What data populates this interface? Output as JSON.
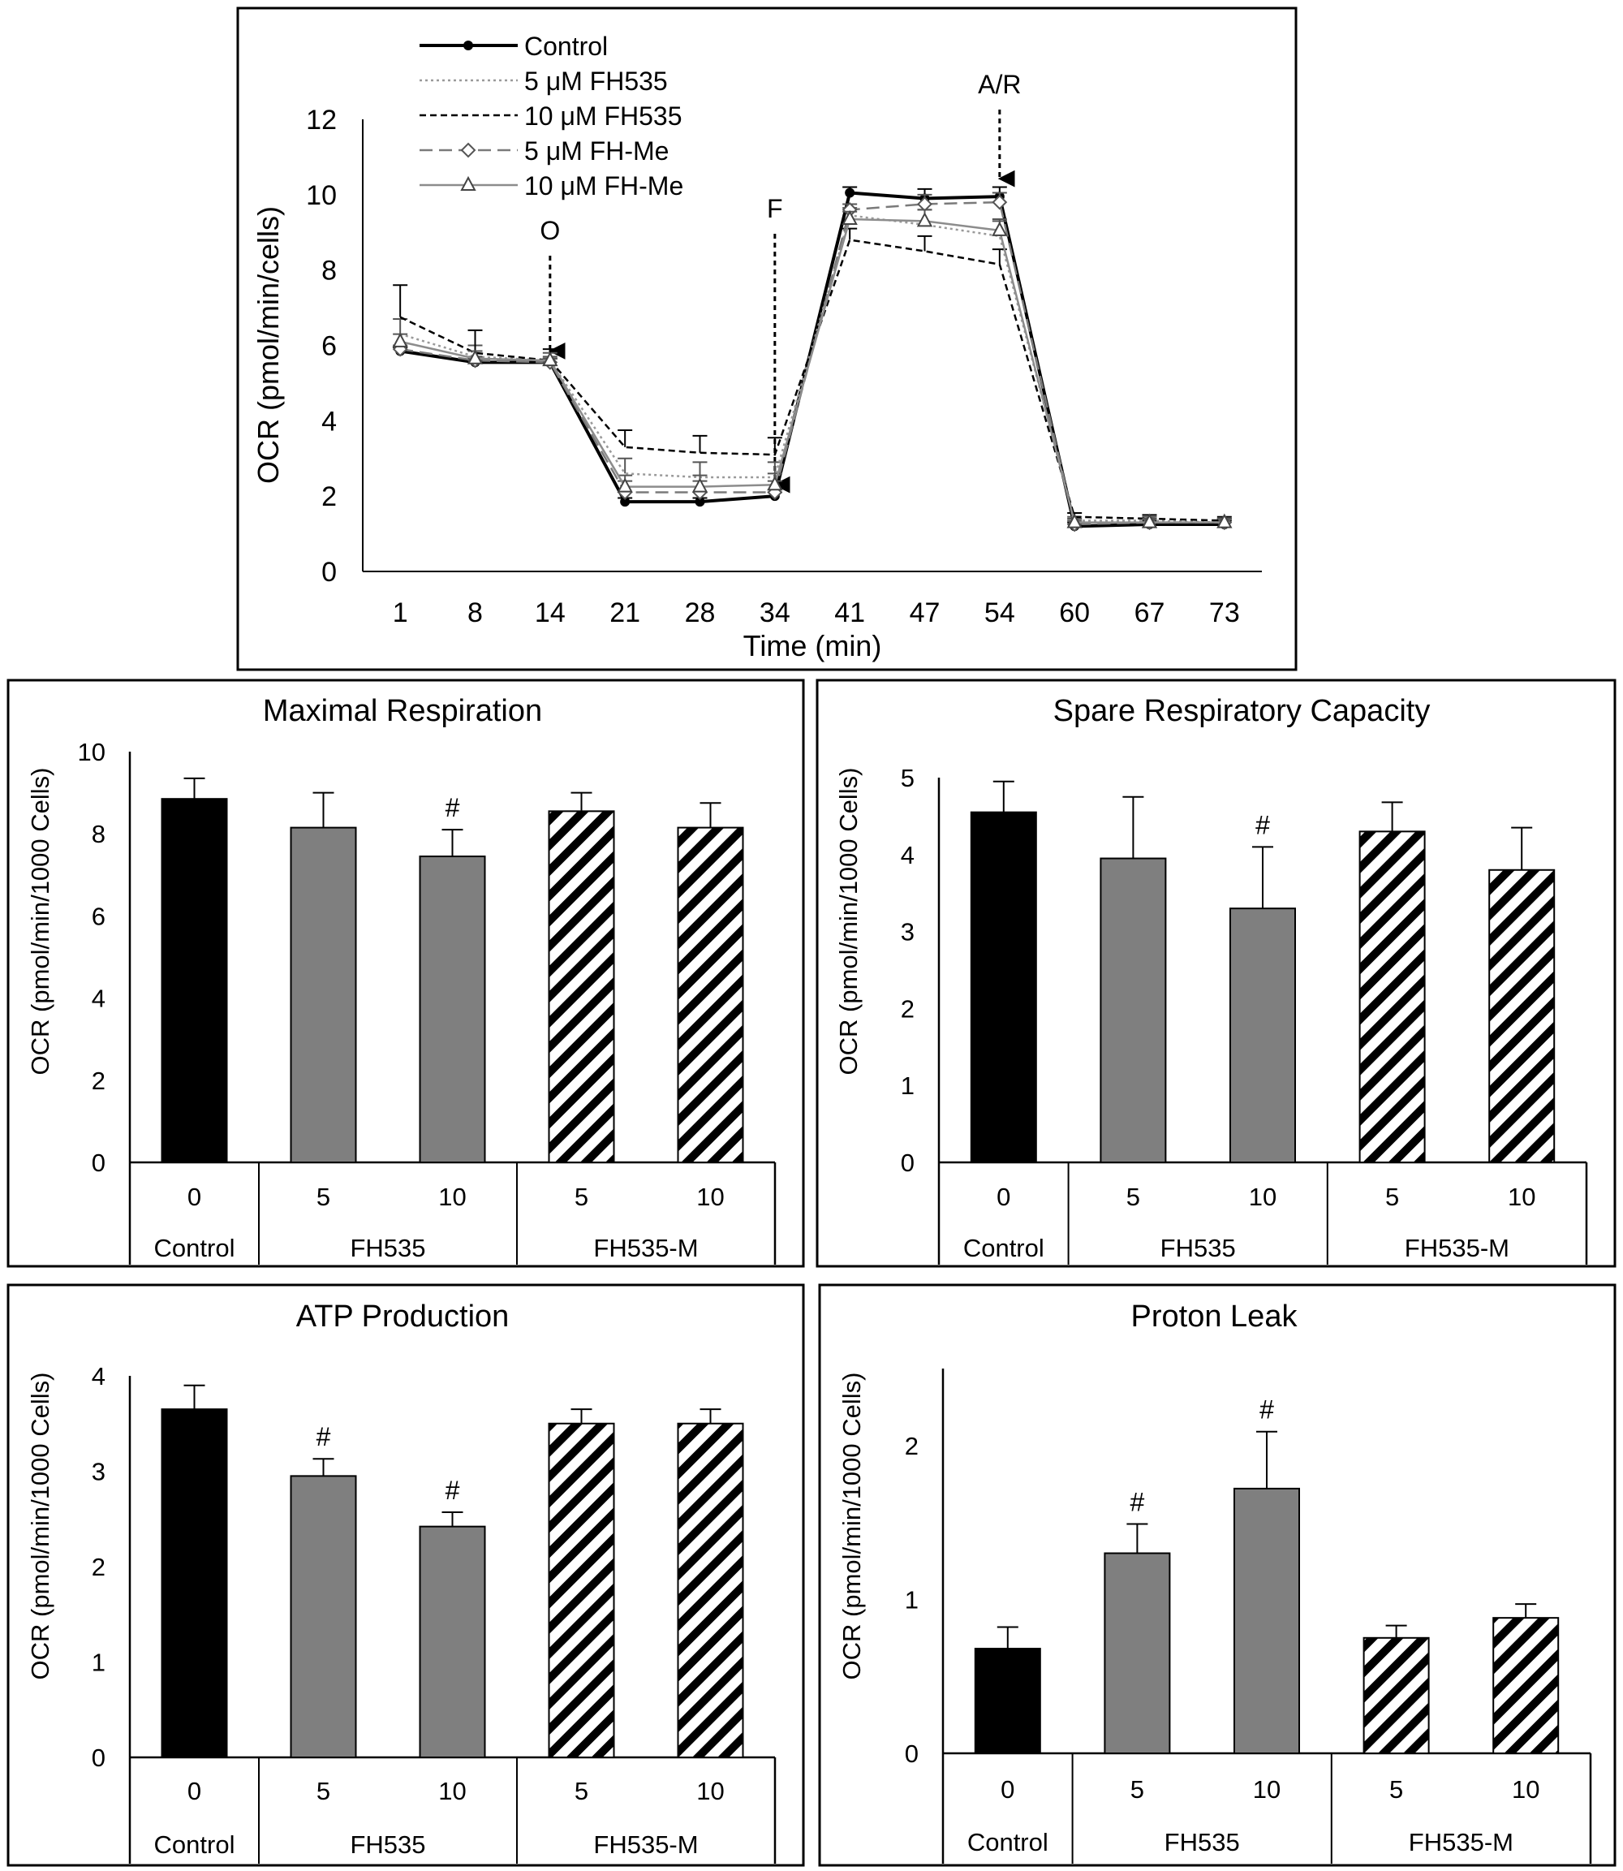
{
  "chart_data": [
    {
      "type": "line",
      "title": "",
      "xlabel": "Time (min)",
      "ylabel": "OCR (pmol/min/cells)",
      "x": [
        1,
        8,
        14,
        21,
        28,
        34,
        41,
        47,
        54,
        60,
        67,
        73
      ],
      "ylim": [
        0,
        12
      ],
      "yticks": [
        0,
        2,
        4,
        6,
        8,
        10,
        12
      ],
      "legend_position": "top-left",
      "series": [
        {
          "name": "Control",
          "values": [
            5.85,
            5.55,
            5.55,
            1.85,
            1.85,
            2.0,
            10.05,
            9.9,
            9.95,
            1.2,
            1.25,
            1.25
          ],
          "errors": [
            0.1,
            0.1,
            0.1,
            0.1,
            0.1,
            0.1,
            0.15,
            0.25,
            0.25,
            0.1,
            0.1,
            0.1
          ]
        },
        {
          "name": "5 μM FH535",
          "values": [
            6.3,
            5.7,
            5.6,
            2.6,
            2.5,
            2.5,
            9.45,
            9.2,
            8.9,
            1.35,
            1.35,
            1.3
          ],
          "errors": [
            0.4,
            0.3,
            0.2,
            0.4,
            0.4,
            0.4,
            0.2,
            0.4,
            0.4,
            0.1,
            0.1,
            0.1
          ]
        },
        {
          "name": "10 μM FH535",
          "values": [
            6.75,
            5.8,
            5.6,
            3.3,
            3.15,
            3.1,
            8.8,
            8.5,
            8.15,
            1.45,
            1.4,
            1.35
          ],
          "errors": [
            0.85,
            0.6,
            0.3,
            0.45,
            0.45,
            0.45,
            0.3,
            0.4,
            0.4,
            0.1,
            0.1,
            0.1
          ]
        },
        {
          "name": "5 μM FH-Me",
          "values": [
            5.9,
            5.6,
            5.55,
            2.1,
            2.1,
            2.1,
            9.6,
            9.75,
            9.8,
            1.25,
            1.3,
            1.3
          ],
          "errors": [
            0.1,
            0.1,
            0.1,
            0.3,
            0.3,
            0.3,
            0.15,
            0.25,
            0.25,
            0.1,
            0.1,
            0.1
          ]
        },
        {
          "name": "10 μM FH-Me",
          "values": [
            6.1,
            5.65,
            5.6,
            2.25,
            2.25,
            2.3,
            9.35,
            9.3,
            9.05,
            1.3,
            1.3,
            1.3
          ],
          "errors": [
            0.2,
            0.2,
            0.1,
            0.3,
            0.3,
            0.3,
            0.2,
            0.3,
            0.3,
            0.1,
            0.1,
            0.1
          ]
        }
      ],
      "annotations": [
        {
          "label": "O",
          "x": 14
        },
        {
          "label": "F",
          "x": 34
        },
        {
          "label": "A/R",
          "x": 54
        }
      ]
    },
    {
      "type": "bar",
      "title": "Maximal Respiration",
      "ylabel": "OCR (pmol/min/1000 Cells)",
      "ylim": [
        0,
        10
      ],
      "yticks": [
        0,
        2,
        4,
        6,
        8,
        10
      ],
      "categories": [
        "0",
        "5",
        "10",
        "5",
        "10"
      ],
      "groups": [
        {
          "label": "Control",
          "span": 1
        },
        {
          "label": "FH535",
          "span": 2
        },
        {
          "label": "FH535-M",
          "span": 2
        }
      ],
      "values": [
        8.85,
        8.15,
        7.45,
        8.55,
        8.15
      ],
      "errors": [
        0.5,
        0.85,
        0.65,
        0.45,
        0.6
      ],
      "markers": [
        "",
        "",
        "#",
        "",
        ""
      ],
      "fills": [
        "black",
        "gray",
        "gray",
        "hatch",
        "hatch"
      ]
    },
    {
      "type": "bar",
      "title": "Spare Respiratory Capacity",
      "ylabel": "OCR (pmol/min/1000 Cells)",
      "ylim": [
        0,
        5
      ],
      "yticks": [
        0,
        1,
        2,
        3,
        4,
        5
      ],
      "categories": [
        "0",
        "5",
        "10",
        "5",
        "10"
      ],
      "groups": [
        {
          "label": "Control",
          "span": 1
        },
        {
          "label": "FH535",
          "span": 2
        },
        {
          "label": "FH535-M",
          "span": 2
        }
      ],
      "values": [
        4.55,
        3.95,
        3.3,
        4.3,
        3.8
      ],
      "errors": [
        0.4,
        0.8,
        0.8,
        0.38,
        0.55
      ],
      "markers": [
        "",
        "",
        "#",
        "",
        ""
      ],
      "fills": [
        "black",
        "gray",
        "gray",
        "hatch",
        "hatch"
      ]
    },
    {
      "type": "bar",
      "title": "ATP Production",
      "ylabel": "OCR (pmol/min/1000 Cells)",
      "ylim": [
        0,
        4
      ],
      "yticks": [
        0,
        1,
        2,
        3,
        4
      ],
      "categories": [
        "0",
        "5",
        "10",
        "5",
        "10"
      ],
      "groups": [
        {
          "label": "Control",
          "span": 1
        },
        {
          "label": "FH535",
          "span": 2
        },
        {
          "label": "FH535-M",
          "span": 2
        }
      ],
      "values": [
        3.65,
        2.95,
        2.42,
        3.5,
        3.5
      ],
      "errors": [
        0.25,
        0.18,
        0.15,
        0.15,
        0.15
      ],
      "markers": [
        "",
        "#",
        "#",
        "",
        ""
      ],
      "fills": [
        "black",
        "gray",
        "gray",
        "hatch",
        "hatch"
      ]
    },
    {
      "type": "bar",
      "title": "Proton Leak",
      "ylabel": "OCR (pmol/min/1000 Cells)",
      "ylim": [
        0,
        2.5
      ],
      "yticks": [
        0,
        1,
        2
      ],
      "categories": [
        "0",
        "5",
        "10",
        "5",
        "10"
      ],
      "groups": [
        {
          "label": "Control",
          "span": 1
        },
        {
          "label": "FH535",
          "span": 2
        },
        {
          "label": "FH535-M",
          "span": 2
        }
      ],
      "values": [
        0.68,
        1.3,
        1.72,
        0.75,
        0.88
      ],
      "errors": [
        0.14,
        0.19,
        0.37,
        0.08,
        0.09
      ],
      "markers": [
        "",
        "#",
        "#",
        "",
        ""
      ],
      "fills": [
        "black",
        "gray",
        "gray",
        "hatch",
        "hatch"
      ]
    }
  ],
  "colors": {
    "control_bar": "#000000",
    "fh535_bar": "#7f7f7f",
    "hatch": "#000000",
    "axis": "#000000"
  }
}
